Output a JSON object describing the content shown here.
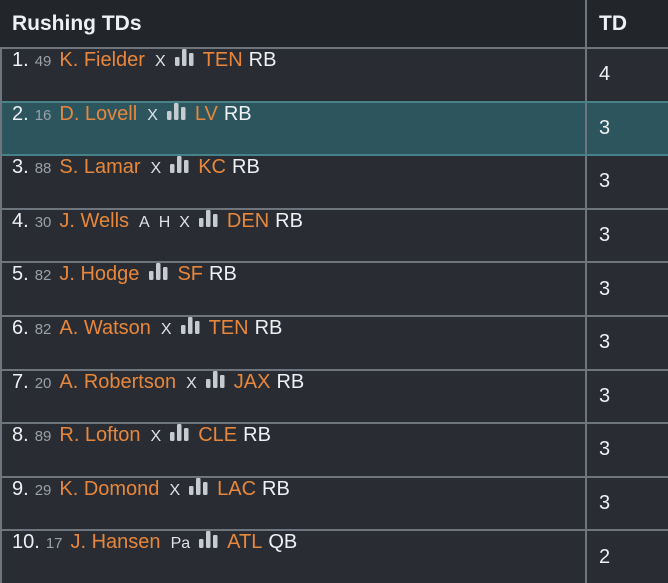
{
  "header": {
    "title": "Rushing TDs",
    "stat_label": "TD"
  },
  "colors": {
    "accent_orange": "#e8873b",
    "selected_row_teal": "#2c555d",
    "selected_border_teal": "#47818a",
    "row_background": "#292d33",
    "header_background": "#22262b",
    "divider_gray": "#6e757c"
  },
  "icons": {
    "bar_chart": "bar-chart-icon"
  },
  "rows": [
    {
      "rank": "1.",
      "jersey": "49",
      "name": "K. Fielder",
      "tags": [
        "X"
      ],
      "team": "TEN",
      "pos": "RB",
      "td": "4",
      "selected": false
    },
    {
      "rank": "2.",
      "jersey": "16",
      "name": "D. Lovell",
      "tags": [
        "X"
      ],
      "team": "LV",
      "pos": "RB",
      "td": "3",
      "selected": true
    },
    {
      "rank": "3.",
      "jersey": "88",
      "name": "S. Lamar",
      "tags": [
        "X"
      ],
      "team": "KC",
      "pos": "RB",
      "td": "3",
      "selected": false
    },
    {
      "rank": "4.",
      "jersey": "30",
      "name": "J. Wells",
      "tags": [
        "A",
        "H",
        "X"
      ],
      "team": "DEN",
      "pos": "RB",
      "td": "3",
      "selected": false
    },
    {
      "rank": "5.",
      "jersey": "82",
      "name": "J. Hodge",
      "tags": [],
      "team": "SF",
      "pos": "RB",
      "td": "3",
      "selected": false
    },
    {
      "rank": "6.",
      "jersey": "82",
      "name": "A. Watson",
      "tags": [
        "X"
      ],
      "team": "TEN",
      "pos": "RB",
      "td": "3",
      "selected": false
    },
    {
      "rank": "7.",
      "jersey": "20",
      "name": "A. Robertson",
      "tags": [
        "X"
      ],
      "team": "JAX",
      "pos": "RB",
      "td": "3",
      "selected": false
    },
    {
      "rank": "8.",
      "jersey": "89",
      "name": "R. Lofton",
      "tags": [
        "X"
      ],
      "team": "CLE",
      "pos": "RB",
      "td": "3",
      "selected": false
    },
    {
      "rank": "9.",
      "jersey": "29",
      "name": "K. Domond",
      "tags": [
        "X"
      ],
      "team": "LAC",
      "pos": "RB",
      "td": "3",
      "selected": false
    },
    {
      "rank": "10.",
      "jersey": "17",
      "name": "J. Hansen",
      "tags": [
        "Pa"
      ],
      "team": "ATL",
      "pos": "QB",
      "td": "2",
      "selected": false
    }
  ]
}
